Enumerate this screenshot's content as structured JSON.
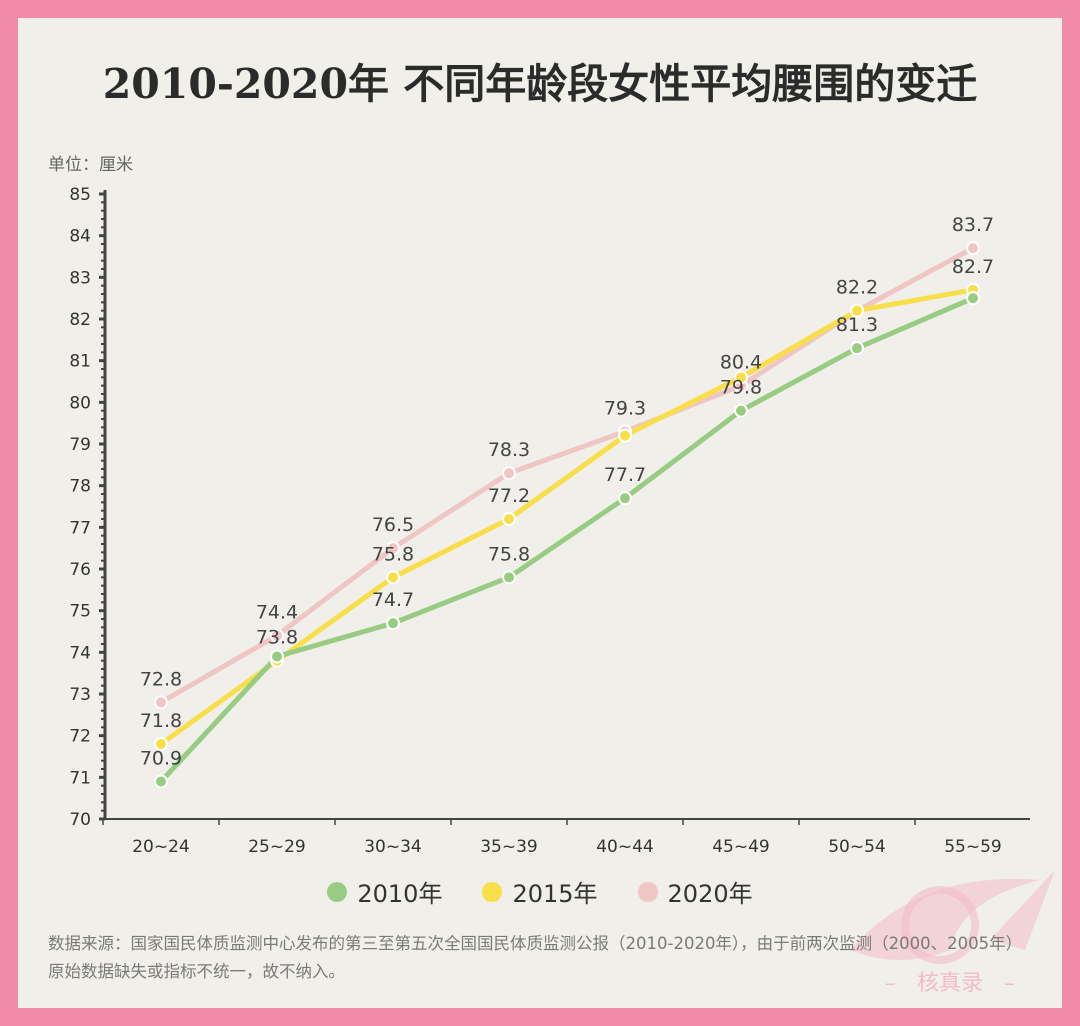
{
  "title": "2010-2020年 不同年龄段女性平均腰围的变迁",
  "unit_label": "单位：厘米",
  "source": "数据来源：国家国民体质监测中心发布的第三至第五次全国国民体质监测公报（2010-2020年），由于前两次监测（2000、2005年）原始数据缺失或指标不统一，故不纳入。",
  "watermark": "核真录",
  "chart_data": {
    "type": "line",
    "title": "2010-2020年 不同年龄段女性平均腰围的变迁",
    "ylabel": "单位：厘米",
    "xlabel": "",
    "ylim": [
      70,
      85
    ],
    "yticks": [
      70,
      71,
      72,
      73,
      74,
      75,
      76,
      77,
      78,
      79,
      80,
      81,
      82,
      83,
      84,
      85
    ],
    "categories": [
      "20~24",
      "25~29",
      "30~34",
      "35~39",
      "40~44",
      "45~49",
      "50~54",
      "55~59"
    ],
    "grid": false,
    "legend_position": "bottom",
    "series": [
      {
        "name": "2010年",
        "color": "#98cc82",
        "values": [
          70.9,
          73.9,
          74.7,
          75.8,
          77.7,
          79.8,
          81.3,
          82.5
        ],
        "labeled": [
          true,
          false,
          true,
          true,
          true,
          true,
          true,
          false
        ]
      },
      {
        "name": "2015年",
        "color": "#f8df4a",
        "values": [
          71.8,
          73.8,
          75.8,
          77.2,
          79.2,
          80.6,
          82.2,
          82.7
        ],
        "labeled": [
          true,
          true,
          true,
          true,
          false,
          false,
          false,
          true
        ]
      },
      {
        "name": "2020年",
        "color": "#efc6c4",
        "values": [
          72.8,
          74.4,
          76.5,
          78.3,
          79.3,
          80.4,
          82.2,
          83.7
        ],
        "labeled": [
          true,
          true,
          true,
          true,
          true,
          true,
          true,
          true
        ]
      }
    ]
  }
}
